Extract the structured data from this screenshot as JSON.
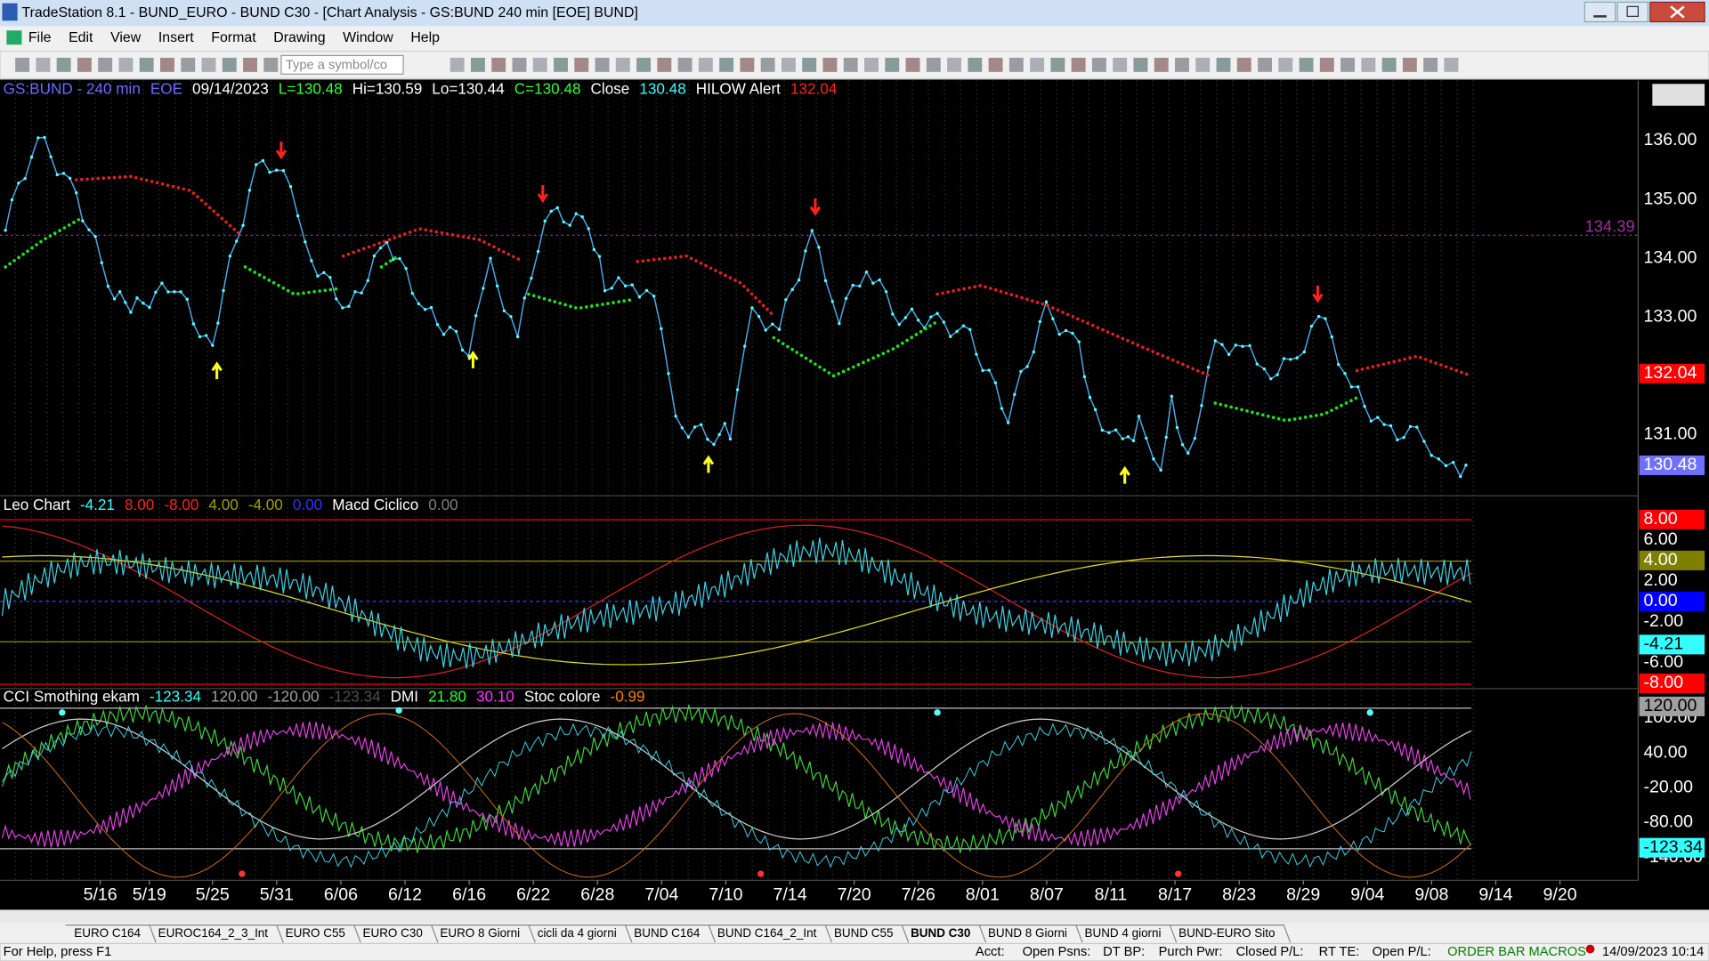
{
  "window": {
    "title": "TradeStation 8.1 - BUND_EURO - BUND  C30 - [Chart Analysis - GS:BUND  240 min  [EOE] BUND]"
  },
  "menu": [
    "File",
    "Edit",
    "View",
    "Insert",
    "Format",
    "Drawing",
    "Window",
    "Help"
  ],
  "toolbar": {
    "symbol_box": "Type a symbol/co"
  },
  "main_panel": {
    "header": [
      {
        "text": "GS:BUND - 240 min",
        "color": "#6b6bff"
      },
      {
        "text": "EOE",
        "color": "#6b6bff"
      },
      {
        "text": "09/14/2023",
        "color": "#ffffff"
      },
      {
        "text": "L=130.48",
        "color": "#33ff33"
      },
      {
        "text": "Hi=130.59",
        "color": "#ffffff"
      },
      {
        "text": "Lo=130.44",
        "color": "#ffffff"
      },
      {
        "text": "C=130.48",
        "color": "#33ff33"
      },
      {
        "text": "Close",
        "color": "#ffffff"
      },
      {
        "text": "130.48",
        "color": "#33ffff"
      },
      {
        "text": "HILOW Alert",
        "color": "#ffffff"
      },
      {
        "text": "132.04",
        "color": "#ff2020"
      }
    ],
    "axis": [
      {
        "label": "136.00"
      },
      {
        "label": "135.00"
      },
      {
        "label": "134.00"
      },
      {
        "label": "133.00"
      },
      {
        "label": "131.00"
      },
      {
        "label": "132.04",
        "box": "#ff0000"
      },
      {
        "label": "130.48",
        "box": "#7070ff"
      }
    ],
    "level": {
      "label": "134.39",
      "color": "#a030a0"
    }
  },
  "leo_panel": {
    "header": [
      {
        "text": "Leo Chart",
        "color": "#ffffff"
      },
      {
        "text": "-4.21",
        "color": "#33ffff"
      },
      {
        "text": "8.00",
        "color": "#ff2020"
      },
      {
        "text": "-8.00",
        "color": "#ff2020"
      },
      {
        "text": "4.00",
        "color": "#a0a000"
      },
      {
        "text": "-4.00",
        "color": "#a0a000"
      },
      {
        "text": "0.00",
        "color": "#3030ff"
      },
      {
        "text": "Macd Ciclico",
        "color": "#ffffff"
      },
      {
        "text": "0.00",
        "color": "#808080"
      }
    ],
    "axis": [
      {
        "label": "8.00",
        "box": "#ff0000"
      },
      {
        "label": "6.00"
      },
      {
        "label": "4.00",
        "box": "#808000"
      },
      {
        "label": "2.00"
      },
      {
        "label": "0.00",
        "box": "#0000ff"
      },
      {
        "label": "-2.00"
      },
      {
        "label": "-4.21",
        "box": "#33ffff"
      },
      {
        "label": "-6.00"
      },
      {
        "label": "-8.00",
        "box": "#ff0000"
      }
    ]
  },
  "cci_panel": {
    "header": [
      {
        "text": "CCI Smothing ekam",
        "color": "#ffffff"
      },
      {
        "text": "-123.34",
        "color": "#33ffff"
      },
      {
        "text": "120.00",
        "color": "#a0a0a0"
      },
      {
        "text": "-120.00",
        "color": "#a0a0a0"
      },
      {
        "text": "-123.34",
        "color": "#505050"
      },
      {
        "text": "DMI",
        "color": "#ffffff"
      },
      {
        "text": "21.80",
        "color": "#33ff33"
      },
      {
        "text": "30.10",
        "color": "#ff33ff"
      },
      {
        "text": "Stoc colore",
        "color": "#ffffff"
      },
      {
        "text": "-0.99",
        "color": "#ff8000"
      }
    ],
    "axis": [
      {
        "label": "100.00"
      },
      {
        "label": "120.00",
        "box": "#a0a0a0"
      },
      {
        "label": "40.00"
      },
      {
        "label": "-20.00"
      },
      {
        "label": "-80.00"
      },
      {
        "label": "-140.00"
      },
      {
        "label": "-123.34",
        "box": "#33ffff"
      }
    ]
  },
  "dates": [
    "5/16",
    "5/19",
    "5/25",
    "5/31",
    "6/06",
    "6/12",
    "6/16",
    "6/22",
    "6/28",
    "7/04",
    "7/10",
    "7/14",
    "7/20",
    "7/26",
    "8/01",
    "8/07",
    "8/11",
    "8/17",
    "8/23",
    "8/29",
    "9/04",
    "9/08",
    "9/14",
    "9/20"
  ],
  "tabs": [
    "EURO C164",
    "EUROC164_2_3_Int",
    "EURO C55",
    "EURO C30",
    "EURO 8 Giorni",
    "cicli da 4 giorni",
    "BUND C164",
    "BUND C164_2_Int",
    "BUND C55",
    "BUND C30",
    "BUND 8 Giorni",
    "BUND 4 giorni",
    "BUND-EURO Sito"
  ],
  "active_tab": 9,
  "status": {
    "help": "For Help, press F1",
    "fields": [
      "Acct:",
      "Open Psns:",
      "DT BP:",
      "Purch Pwr:",
      "Closed P/L:",
      "RT TE:",
      "Open P/L:"
    ],
    "macros": "ORDER BAR MACROS",
    "clock": "14/09/2023 10:14"
  }
}
